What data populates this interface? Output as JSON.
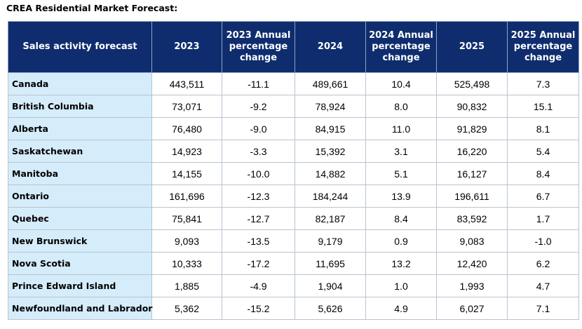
{
  "title": "CREA Residential Market Forecast:",
  "table": {
    "headers": [
      "Sales activity forecast",
      "2023",
      "2023 Annual percentage change",
      "2024",
      "2024 Annual percentage change",
      "2025",
      "2025 Annual percentage change"
    ],
    "rows": [
      [
        "Canada",
        "443,511",
        "-11.1",
        "489,661",
        "10.4",
        "525,498",
        "7.3"
      ],
      [
        "British Columbia",
        "73,071",
        "-9.2",
        "78,924",
        "8.0",
        "90,832",
        "15.1"
      ],
      [
        "Alberta",
        "76,480",
        "-9.0",
        "84,915",
        "11.0",
        "91,829",
        "8.1"
      ],
      [
        "Saskatchewan",
        "14,923",
        "-3.3",
        "15,392",
        "3.1",
        "16,220",
        "5.4"
      ],
      [
        "Manitoba",
        "14,155",
        "-10.0",
        "14,882",
        "5.1",
        "16,127",
        "8.4"
      ],
      [
        "Ontario",
        "161,696",
        "-12.3",
        "184,244",
        "13.9",
        "196,611",
        "6.7"
      ],
      [
        "Quebec",
        "75,841",
        "-12.7",
        "82,187",
        "8.4",
        "83,592",
        "1.7"
      ],
      [
        "New Brunswick",
        "9,093",
        "-13.5",
        "9,179",
        "0.9",
        "9,083",
        "-1.0"
      ],
      [
        "Nova Scotia",
        "10,333",
        "-17.2",
        "11,695",
        "13.2",
        "12,420",
        "6.2"
      ],
      [
        "Prince Edward Island",
        "1,885",
        "-4.9",
        "1,904",
        "1.0",
        "1,993",
        "4.7"
      ],
      [
        "Newfoundland and Labrador",
        "5,362",
        "-15.2",
        "5,626",
        "4.9",
        "6,027",
        "7.1"
      ]
    ]
  },
  "colors": {
    "header_bg": "#0f2d6e",
    "header_text": "#ffffff",
    "province_cell_bg": "#d5ecfb",
    "grid_line": "#b9c3cf"
  }
}
